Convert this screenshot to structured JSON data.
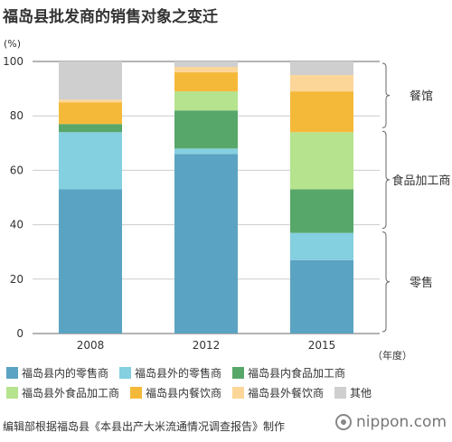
{
  "title": "福岛县批发商的销售对象之变迁",
  "chart_data": {
    "type": "bar",
    "stacked": true,
    "y_unit_label": "(%)",
    "x_unit_label": "（年度）",
    "ylim": [
      0,
      100
    ],
    "yticks": [
      0,
      20,
      40,
      60,
      80,
      100
    ],
    "categories": [
      "2008",
      "2012",
      "2015"
    ],
    "series": [
      {
        "name": "福岛县内的零售商",
        "color": "#5ba3c2",
        "values": [
          53,
          66,
          27
        ]
      },
      {
        "name": "福岛县外的零售商",
        "color": "#84cfe0",
        "values": [
          21,
          2,
          10
        ]
      },
      {
        "name": "福岛县内食品加工商",
        "color": "#58a76a",
        "values": [
          3,
          14,
          16
        ]
      },
      {
        "name": "福岛县外食品加工商",
        "color": "#b5e38e",
        "values": [
          0,
          7,
          21
        ]
      },
      {
        "name": "福岛县内餐饮商",
        "color": "#f5b93a",
        "values": [
          8,
          7,
          15
        ]
      },
      {
        "name": "福岛县外餐饮商",
        "color": "#fcd699",
        "values": [
          1,
          2,
          6
        ]
      },
      {
        "name": "其他",
        "color": "#cfcfcf",
        "values": [
          14,
          2,
          5
        ]
      }
    ],
    "brackets": [
      {
        "label": "餐馆",
        "from": 75,
        "to": 100
      },
      {
        "label": "食品加工商",
        "from": 38,
        "to": 75
      },
      {
        "label": "零售",
        "from": 0,
        "to": 38
      }
    ]
  },
  "source": "编辑部根据福岛县《本县出产大米流通情况调查报告》制作",
  "brand": "nippon.com"
}
